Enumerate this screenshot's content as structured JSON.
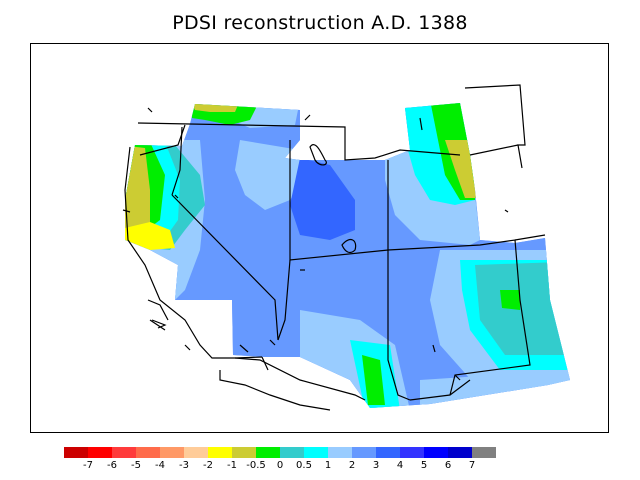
{
  "title": "PDSI reconstruction A.D. 1388",
  "legend": {
    "colors": [
      "#cc0000",
      "#ff0000",
      "#ff3b3b",
      "#ff6b4a",
      "#ff9966",
      "#ffcc99",
      "#ffff00",
      "#cccc33",
      "#00ee00",
      "#33cccc",
      "#00ffff",
      "#99ccff",
      "#6699ff",
      "#3366ff",
      "#3333ff",
      "#0000ff",
      "#0000cc",
      "#808080"
    ],
    "labels": [
      "-7",
      "-6",
      "-5",
      "-4",
      "-3",
      "-2",
      "-1",
      "-0.5",
      "0",
      "0.5",
      "1",
      "2",
      "3",
      "4",
      "5",
      "6",
      "7"
    ]
  }
}
